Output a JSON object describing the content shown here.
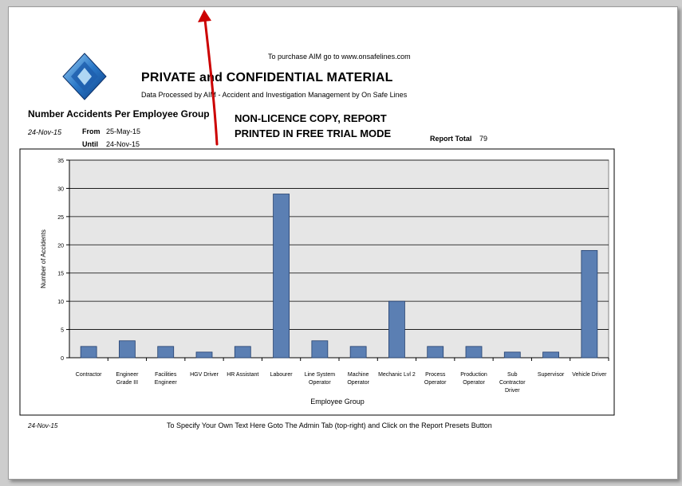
{
  "header": {
    "purchase_text": "To purchase AIM go to www.onsafelines.com",
    "title": "PRIVATE and CONFIDENTIAL MATERIAL",
    "subtitle": "Data Processed by AIM - Accident and Investigation Management by On Safe Lines",
    "trial_line1": "NON-LICENCE COPY, REPORT",
    "trial_line2": "PRINTED IN FREE TRIAL MODE"
  },
  "report": {
    "name": "Number Accidents Per Employee Group",
    "print_date": "24-Nov-15",
    "from_label": "From",
    "from_value": "25-May-15",
    "until_label": "Until",
    "until_value": "24-Nov-15",
    "total_label": "Report Total",
    "total_value": "79"
  },
  "footer": {
    "date": "24-Nov-15",
    "text": "To Specify Your Own Text Here Goto The Admin Tab (top-right) and Click on the Report Presets Button"
  },
  "colors": {
    "bar": "#5b7fb3",
    "bar_stroke": "#24406e",
    "plot_bg": "#e6e6e6",
    "annotation_arrow": "#cc0000"
  },
  "annotation": {
    "icon": "red-arrow-icon"
  },
  "logo": {
    "icon": "aim-diamond-logo"
  },
  "chart_data": {
    "type": "bar",
    "title": "Number Accidents Per Employee Group",
    "xlabel": "Employee Group",
    "ylabel": "Number of Accidents",
    "ylim": [
      0,
      35
    ],
    "yticks": [
      0,
      5,
      10,
      15,
      20,
      25,
      30,
      35
    ],
    "grid": true,
    "legend": "none",
    "categories": [
      [
        "Contractor"
      ],
      [
        "Engineer",
        "Grade III"
      ],
      [
        "Facilities",
        "Engineer"
      ],
      [
        "HGV Driver"
      ],
      [
        "HR Assistant"
      ],
      [
        "Labourer"
      ],
      [
        "Line System",
        "Operator"
      ],
      [
        "Machine",
        "Operator"
      ],
      [
        "Mechanic Lvl 2"
      ],
      [
        "Process",
        "Operator"
      ],
      [
        "Production",
        "Operator"
      ],
      [
        "Sub",
        "Contractor",
        "Driver"
      ],
      [
        "Supervisor"
      ],
      [
        "Vehicle Driver"
      ]
    ],
    "values": [
      2,
      3,
      2,
      1,
      2,
      29,
      3,
      2,
      10,
      2,
      2,
      1,
      1,
      19
    ]
  }
}
